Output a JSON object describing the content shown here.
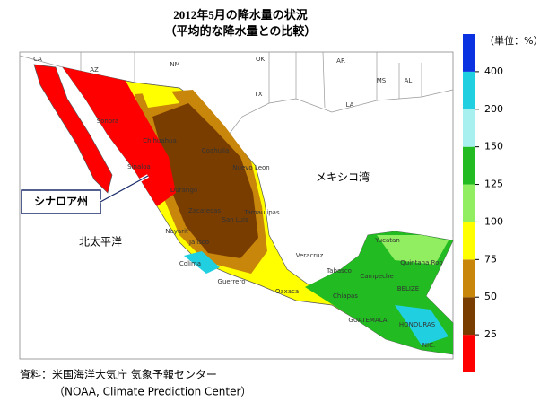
{
  "title": [
    "2012年5月の降水量の状況",
    "（平均的な降水量との比較）"
  ],
  "annotations": {
    "callout": "シナロア州",
    "gulf": "メキシコ湾",
    "pacific": "北太平洋"
  },
  "map_labels": [
    "CA",
    "AZ",
    "NM",
    "TX",
    "OK",
    "AR",
    "MS",
    "AL",
    "LA",
    "Sonora",
    "Chihuahua",
    "Coahuila",
    "Nuevo Leon",
    "Tamaulipas",
    "Sinaloa",
    "Durango",
    "Zacatecas",
    "San Luis",
    "Nayarit",
    "Jalisco",
    "Colima",
    "Guerrero",
    "Oaxaca",
    "Veracruz",
    "Tabasco",
    "Campeche",
    "Yucatan",
    "Quintana Roo",
    "Chiapas",
    "BELIZE",
    "GUATEMALA",
    "HONDURAS",
    "NIC."
  ],
  "legend": {
    "unit": "（単位：%）",
    "ticks": [
      25,
      50,
      75,
      100,
      125,
      150,
      200,
      400
    ],
    "colors": [
      "#ff0000",
      "#7a3d00",
      "#c8860a",
      "#ffff00",
      "#90ee60",
      "#22bb22",
      "#a8f0f0",
      "#20d0e0",
      "#0a32e0"
    ]
  },
  "source": [
    "資料：米国海洋大気庁 気象予報センター",
    "（NOAA, Climate Prediction Center）"
  ]
}
